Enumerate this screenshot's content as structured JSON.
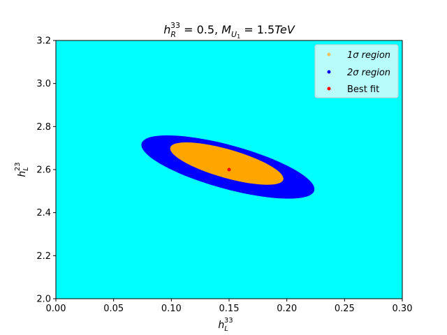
{
  "chart_data": {
    "type": "scatter",
    "title": "h_R^{33} = 0.5, M_{U_1} = 1.5TeV",
    "title_parts": {
      "h": "h",
      "sub": "R",
      "sup": "33",
      "mid": " = 0.5, ",
      "m": "M",
      "msub": "U",
      "msubsub": "1",
      "tail": " = 1.5",
      "unit": "TeV"
    },
    "xlabel": "h_L^{33}",
    "xlabel_parts": {
      "base": "h",
      "sub": "L",
      "sup": "33"
    },
    "ylabel": "h_L^{23}",
    "ylabel_parts": {
      "base": "h",
      "sub": "L",
      "sup": "23"
    },
    "xlim": [
      0.0,
      0.3
    ],
    "ylim": [
      2.0,
      3.2
    ],
    "xticks": [
      "0.00",
      "0.05",
      "0.10",
      "0.15",
      "0.20",
      "0.25",
      "0.30"
    ],
    "yticks": [
      "2.0",
      "2.2",
      "2.4",
      "2.6",
      "2.8",
      "3.0",
      "3.2"
    ],
    "background_color": "#00ffff",
    "grid": false,
    "legend_position": "top-right",
    "series": [
      {
        "name": "1σ region",
        "color": "#ffa500",
        "marker_color": "#f0c060",
        "label_parts": {
          "sym": "1σ",
          "text": " region"
        },
        "center": [
          0.148,
          2.628
        ],
        "semi_axis_major": [
          0.047,
          -0.087
        ],
        "semi_axis_minor": [
          0.014,
          0.046
        ]
      },
      {
        "name": "2σ region",
        "color": "#0000ff",
        "label_parts": {
          "sym": "2σ",
          "text": " region"
        },
        "center": [
          0.149,
          2.612
        ],
        "semi_axis_major": [
          0.073,
          -0.124
        ],
        "semi_axis_minor": [
          0.017,
          0.079
        ]
      },
      {
        "name": "Best fit",
        "color": "#ff0000",
        "points": [
          [
            0.15,
            2.6
          ]
        ]
      }
    ]
  }
}
